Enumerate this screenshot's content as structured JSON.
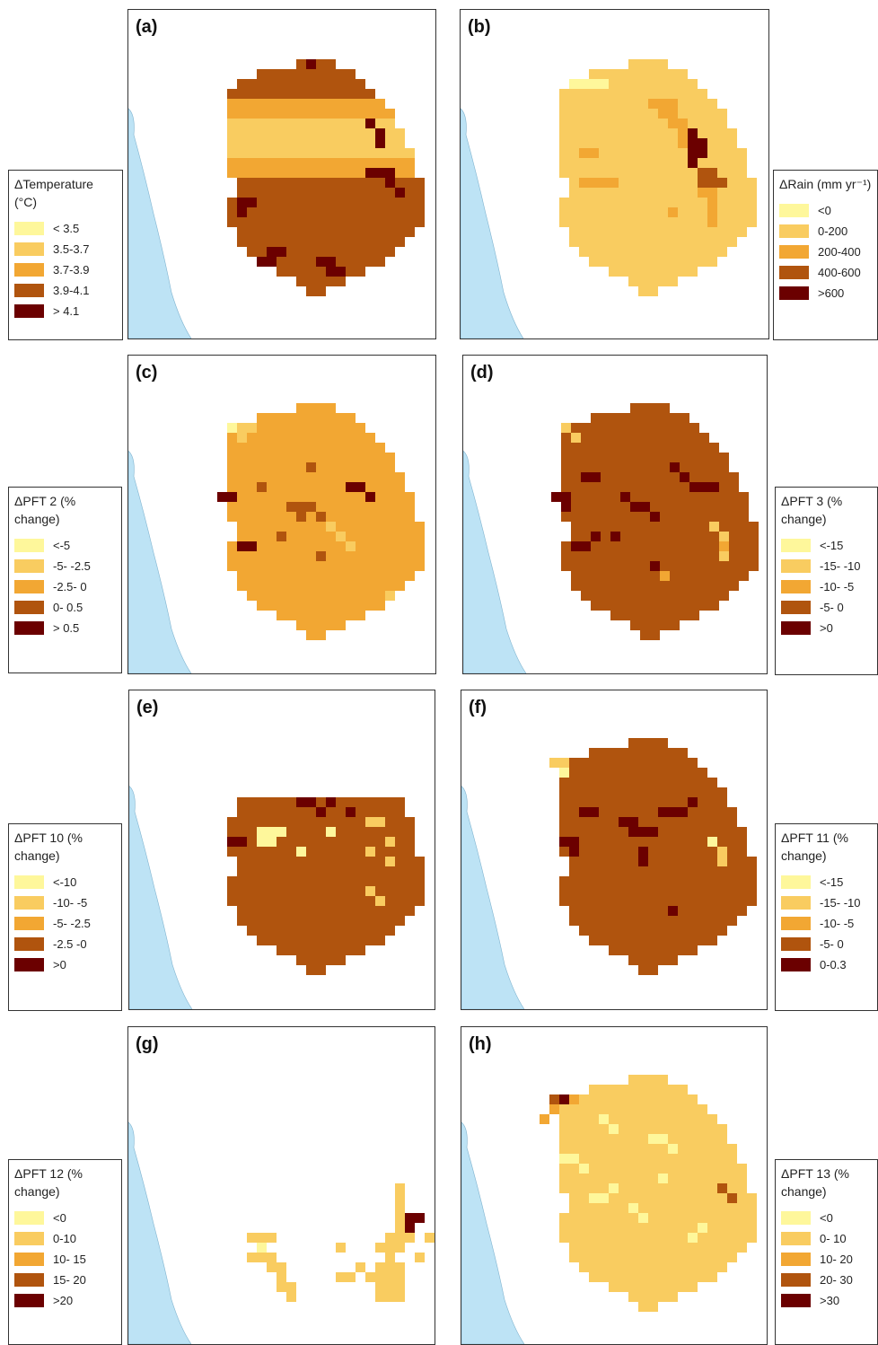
{
  "panels": [
    {
      "label": "(a)",
      "key": "a"
    },
    {
      "label": "(b)",
      "key": "b"
    },
    {
      "label": "(c)",
      "key": "c"
    },
    {
      "label": "(d)",
      "key": "d"
    },
    {
      "label": "(e)",
      "key": "e"
    },
    {
      "label": "(f)",
      "key": "f"
    },
    {
      "label": "(g)",
      "key": "g"
    },
    {
      "label": "(h)",
      "key": "h"
    }
  ],
  "colors": [
    "#fef79b",
    "#f9cc60",
    "#f2a733",
    "#b0540e",
    "#6b0000"
  ],
  "sea_color": "#bde3f5",
  "legends": {
    "temperature": {
      "title": "ΔTemperature (°C)",
      "items": [
        "< 3.5",
        "3.5-3.7",
        "3.7-3.9",
        "3.9-4.1",
        "> 4.1"
      ]
    },
    "rain": {
      "title": "ΔRain (mm yr⁻¹)",
      "items": [
        "<0",
        "0-200",
        "200-400",
        "400-600",
        ">600"
      ]
    },
    "pft2": {
      "title": "ΔPFT 2 (% change)",
      "items": [
        "<-5",
        "-5- -2.5",
        "-2.5- 0",
        "0- 0.5",
        "> 0.5"
      ]
    },
    "pft3": {
      "title": "ΔPFT 3 (% change)",
      "items": [
        "<-15",
        "-15- -10",
        "-10- -5",
        "-5- 0",
        ">0"
      ]
    },
    "pft10": {
      "title": "ΔPFT 10 (% change)",
      "items": [
        "<-10",
        "-10- -5",
        "-5- -2.5",
        "-2.5 -0",
        ">0"
      ]
    },
    "pft11": {
      "title": "ΔPFT 11 (% change)",
      "items": [
        "<-15",
        "-15- -10",
        "-10- -5",
        "-5- 0",
        "0-0.3"
      ]
    },
    "pft12": {
      "title": "ΔPFT 12 (% change)",
      "items": [
        "<0",
        "0-10",
        "10- 15",
        "15- 20",
        ">20"
      ]
    },
    "pft13": {
      "title": "ΔPFT 13 (% change)",
      "items": [
        "<0",
        "0- 10",
        "10- 20",
        "20- 30",
        ">30"
      ]
    }
  },
  "map_data": {
    "grid": {
      "cols": 24,
      "rows": 24,
      "cell": 11
    },
    "region_rows": [
      [
        12,
        15
      ],
      [
        8,
        17
      ],
      [
        6,
        18
      ],
      [
        5,
        19
      ],
      [
        5,
        20
      ],
      [
        5,
        21
      ],
      [
        5,
        21
      ],
      [
        5,
        22
      ],
      [
        5,
        22
      ],
      [
        5,
        23
      ],
      [
        5,
        23
      ],
      [
        5,
        23
      ],
      [
        6,
        24
      ],
      [
        6,
        24
      ],
      [
        5,
        24
      ],
      [
        5,
        24
      ],
      [
        5,
        24
      ],
      [
        6,
        23
      ],
      [
        6,
        22
      ],
      [
        7,
        21
      ],
      [
        8,
        20
      ],
      [
        10,
        18
      ],
      [
        12,
        16
      ],
      [
        13,
        14
      ]
    ],
    "a": {
      "bands": [
        [
          0,
          3,
          3
        ],
        [
          4,
          5,
          2
        ],
        [
          6,
          7,
          1
        ],
        [
          8,
          9,
          1
        ],
        [
          10,
          11,
          2
        ],
        [
          12,
          13,
          3
        ],
        [
          14,
          15,
          3
        ],
        [
          16,
          17,
          3
        ],
        [
          18,
          19,
          3
        ],
        [
          20,
          23,
          3
        ]
      ],
      "cells": [
        [
          13,
          0,
          4
        ],
        [
          16,
          1,
          3
        ],
        [
          19,
          6,
          4
        ],
        [
          20,
          7,
          4
        ],
        [
          20,
          8,
          4
        ],
        [
          19,
          11,
          4
        ],
        [
          20,
          11,
          4
        ],
        [
          21,
          11,
          4
        ],
        [
          21,
          12,
          4
        ],
        [
          22,
          13,
          4
        ],
        [
          6,
          14,
          4
        ],
        [
          7,
          14,
          4
        ],
        [
          6,
          15,
          4
        ],
        [
          9,
          19,
          4
        ],
        [
          10,
          19,
          4
        ],
        [
          8,
          20,
          4
        ],
        [
          9,
          20,
          4
        ],
        [
          14,
          20,
          4
        ],
        [
          15,
          20,
          4
        ],
        [
          15,
          21,
          4
        ],
        [
          16,
          21,
          4
        ]
      ]
    },
    "b": {
      "bands": [
        [
          0,
          2,
          1
        ],
        [
          3,
          23,
          1
        ]
      ],
      "cells": [
        [
          14,
          4,
          2
        ],
        [
          15,
          4,
          2
        ],
        [
          16,
          4,
          2
        ],
        [
          15,
          5,
          2
        ],
        [
          16,
          5,
          2
        ],
        [
          16,
          6,
          2
        ],
        [
          17,
          6,
          2
        ],
        [
          17,
          7,
          2
        ],
        [
          17,
          8,
          2
        ],
        [
          18,
          7,
          4
        ],
        [
          18,
          8,
          4
        ],
        [
          19,
          8,
          4
        ],
        [
          18,
          9,
          4
        ],
        [
          19,
          9,
          4
        ],
        [
          18,
          10,
          4
        ],
        [
          19,
          11,
          3
        ],
        [
          20,
          11,
          3
        ],
        [
          19,
          12,
          3
        ],
        [
          20,
          12,
          3
        ],
        [
          21,
          12,
          3
        ],
        [
          19,
          13,
          2
        ],
        [
          20,
          13,
          2
        ],
        [
          20,
          14,
          2
        ],
        [
          20,
          15,
          2
        ],
        [
          20,
          16,
          2
        ],
        [
          7,
          9,
          2
        ],
        [
          8,
          9,
          2
        ],
        [
          7,
          12,
          2
        ],
        [
          8,
          12,
          2
        ],
        [
          9,
          12,
          2
        ],
        [
          10,
          12,
          2
        ],
        [
          16,
          15,
          2
        ],
        [
          6,
          2,
          0
        ],
        [
          7,
          2,
          0
        ],
        [
          8,
          2,
          0
        ],
        [
          9,
          2,
          0
        ]
      ]
    },
    "c": {
      "bands": [
        [
          0,
          23,
          2
        ]
      ],
      "cells": [
        [
          4,
          9,
          4
        ],
        [
          5,
          9,
          4
        ],
        [
          6,
          14,
          4
        ],
        [
          7,
          14,
          4
        ],
        [
          11,
          10,
          3
        ],
        [
          12,
          10,
          3
        ],
        [
          13,
          10,
          3
        ],
        [
          12,
          11,
          3
        ],
        [
          14,
          11,
          3
        ],
        [
          17,
          8,
          4
        ],
        [
          18,
          8,
          4
        ],
        [
          19,
          9,
          4
        ],
        [
          8,
          8,
          3
        ],
        [
          13,
          6,
          3
        ],
        [
          15,
          12,
          3
        ],
        [
          10,
          13,
          3
        ],
        [
          14,
          15,
          3
        ],
        [
          6,
          2,
          1
        ],
        [
          7,
          2,
          1
        ],
        [
          6,
          3,
          1
        ],
        [
          5,
          2,
          0
        ],
        [
          15,
          12,
          1
        ],
        [
          16,
          13,
          1
        ],
        [
          17,
          14,
          1
        ],
        [
          21,
          19,
          1
        ]
      ]
    },
    "d": {
      "bands": [
        [
          0,
          23,
          3
        ]
      ],
      "cells": [
        [
          4,
          9,
          4
        ],
        [
          5,
          9,
          4
        ],
        [
          5,
          10,
          4
        ],
        [
          7,
          7,
          4
        ],
        [
          8,
          7,
          4
        ],
        [
          11,
          9,
          4
        ],
        [
          12,
          10,
          4
        ],
        [
          13,
          10,
          4
        ],
        [
          14,
          11,
          4
        ],
        [
          17,
          7,
          4
        ],
        [
          18,
          8,
          4
        ],
        [
          19,
          8,
          4
        ],
        [
          20,
          8,
          4
        ],
        [
          16,
          6,
          4
        ],
        [
          6,
          14,
          4
        ],
        [
          7,
          14,
          4
        ],
        [
          8,
          13,
          4
        ],
        [
          10,
          13,
          4
        ],
        [
          14,
          16,
          4
        ],
        [
          5,
          2,
          1
        ],
        [
          6,
          3,
          1
        ],
        [
          20,
          12,
          1
        ],
        [
          21,
          13,
          1
        ],
        [
          21,
          14,
          2
        ],
        [
          21,
          15,
          1
        ],
        [
          15,
          17,
          2
        ]
      ]
    },
    "e": {
      "rows_override": [
        [
          6,
          22
        ],
        [
          6,
          22
        ],
        [
          5,
          23
        ],
        [
          5,
          23
        ],
        [
          5,
          23
        ],
        [
          5,
          23
        ],
        [
          6,
          24
        ],
        [
          6,
          24
        ],
        [
          5,
          24
        ],
        [
          5,
          24
        ],
        [
          5,
          24
        ],
        [
          6,
          23
        ],
        [
          6,
          22
        ],
        [
          7,
          21
        ],
        [
          8,
          20
        ],
        [
          10,
          18
        ],
        [
          12,
          16
        ],
        [
          13,
          14
        ]
      ],
      "offset_row": 6,
      "bands": [
        [
          0,
          23,
          3
        ]
      ],
      "cells": [
        [
          12,
          6,
          4
        ],
        [
          13,
          6,
          4
        ],
        [
          15,
          6,
          4
        ],
        [
          17,
          7,
          4
        ],
        [
          14,
          7,
          4
        ],
        [
          5,
          10,
          4
        ],
        [
          6,
          10,
          4
        ],
        [
          19,
          8,
          1
        ],
        [
          20,
          8,
          1
        ],
        [
          21,
          10,
          1
        ],
        [
          19,
          11,
          1
        ],
        [
          21,
          12,
          1
        ],
        [
          19,
          15,
          1
        ],
        [
          20,
          16,
          1
        ],
        [
          8,
          9,
          0
        ],
        [
          9,
          9,
          0
        ],
        [
          10,
          9,
          0
        ],
        [
          8,
          10,
          0
        ],
        [
          9,
          10,
          0
        ],
        [
          15,
          9,
          0
        ],
        [
          12,
          11,
          0
        ]
      ]
    },
    "f": {
      "bands": [
        [
          0,
          23,
          3
        ]
      ],
      "cells": [
        [
          11,
          8,
          4
        ],
        [
          12,
          8,
          4
        ],
        [
          12,
          9,
          4
        ],
        [
          13,
          9,
          4
        ],
        [
          14,
          9,
          4
        ],
        [
          15,
          7,
          4
        ],
        [
          16,
          7,
          4
        ],
        [
          17,
          7,
          4
        ],
        [
          18,
          6,
          4
        ],
        [
          7,
          7,
          4
        ],
        [
          8,
          7,
          4
        ],
        [
          5,
          10,
          4
        ],
        [
          6,
          10,
          4
        ],
        [
          6,
          11,
          4
        ],
        [
          13,
          11,
          4
        ],
        [
          13,
          12,
          4
        ],
        [
          4,
          2,
          1
        ],
        [
          5,
          2,
          1
        ],
        [
          5,
          3,
          0
        ],
        [
          21,
          11,
          1
        ],
        [
          21,
          12,
          1
        ],
        [
          20,
          10,
          0
        ],
        [
          22,
          12,
          3
        ],
        [
          16,
          17,
          4
        ]
      ]
    },
    "g": {
      "cells": [
        [
          18,
          0,
          1
        ],
        [
          18,
          1,
          1
        ],
        [
          18,
          2,
          1
        ],
        [
          18,
          3,
          1
        ],
        [
          19,
          3,
          4
        ],
        [
          20,
          3,
          4
        ],
        [
          19,
          4,
          4
        ],
        [
          18,
          4,
          1
        ],
        [
          17,
          5,
          1
        ],
        [
          18,
          5,
          1
        ],
        [
          19,
          5,
          1
        ],
        [
          16,
          6,
          1
        ],
        [
          17,
          6,
          1
        ],
        [
          18,
          6,
          1
        ],
        [
          17,
          7,
          1
        ],
        [
          16,
          8,
          1
        ],
        [
          17,
          8,
          1
        ],
        [
          18,
          8,
          1
        ],
        [
          15,
          9,
          1
        ],
        [
          16,
          9,
          1
        ],
        [
          17,
          9,
          1
        ],
        [
          18,
          9,
          1
        ],
        [
          16,
          10,
          1
        ],
        [
          17,
          10,
          1
        ],
        [
          18,
          10,
          1
        ],
        [
          16,
          11,
          1
        ],
        [
          17,
          11,
          1
        ],
        [
          18,
          11,
          1
        ],
        [
          12,
          9,
          1
        ],
        [
          13,
          9,
          1
        ],
        [
          14,
          8,
          1
        ],
        [
          12,
          6,
          1
        ],
        [
          3,
          5,
          1
        ],
        [
          4,
          5,
          1
        ],
        [
          5,
          5,
          1
        ],
        [
          4,
          6,
          0
        ],
        [
          3,
          7,
          1
        ],
        [
          4,
          7,
          1
        ],
        [
          5,
          7,
          1
        ],
        [
          5,
          8,
          1
        ],
        [
          6,
          8,
          1
        ],
        [
          6,
          9,
          1
        ],
        [
          6,
          10,
          1
        ],
        [
          7,
          10,
          1
        ],
        [
          7,
          11,
          1
        ],
        [
          21,
          5,
          1
        ],
        [
          22,
          6,
          1
        ],
        [
          20,
          7,
          1
        ]
      ],
      "offset_col": 4,
      "offset_row": 11
    },
    "h": {
      "bands": [
        [
          0,
          23,
          1
        ]
      ],
      "cells": [
        [
          5,
          2,
          4
        ],
        [
          6,
          2,
          2
        ],
        [
          4,
          2,
          3
        ],
        [
          4,
          3,
          2
        ],
        [
          3,
          4,
          2
        ],
        [
          9,
          4,
          0
        ],
        [
          10,
          5,
          0
        ],
        [
          14,
          6,
          0
        ],
        [
          15,
          6,
          0
        ],
        [
          16,
          7,
          0
        ],
        [
          5,
          8,
          0
        ],
        [
          6,
          8,
          0
        ],
        [
          7,
          9,
          0
        ],
        [
          15,
          10,
          0
        ],
        [
          21,
          11,
          3
        ],
        [
          22,
          12,
          3
        ],
        [
          8,
          12,
          0
        ],
        [
          9,
          12,
          0
        ],
        [
          10,
          11,
          0
        ],
        [
          12,
          13,
          0
        ],
        [
          13,
          14,
          0
        ],
        [
          18,
          16,
          0
        ],
        [
          19,
          15,
          0
        ]
      ]
    }
  }
}
